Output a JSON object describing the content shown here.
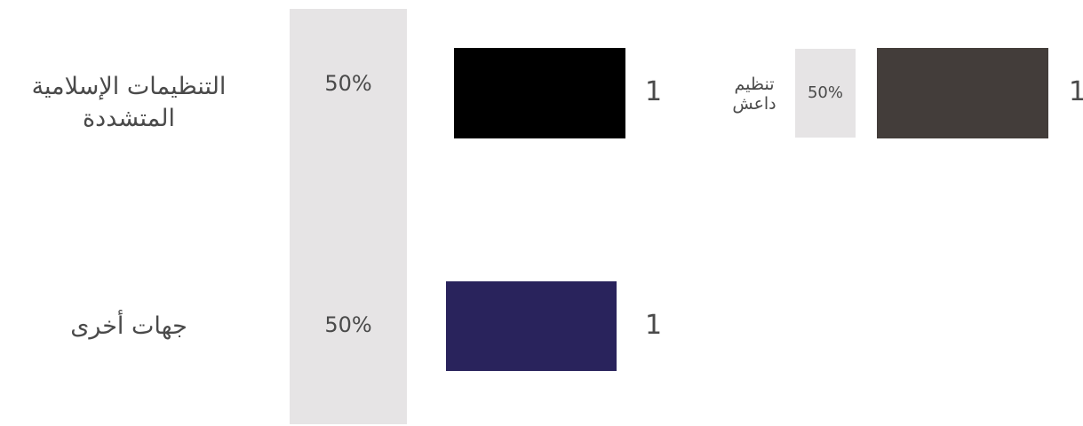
{
  "chart_data": {
    "type": "bar",
    "categories": [
      "التنظيمات الإسلامية المتشددة",
      "جهات أخرى"
    ],
    "values": [
      1,
      1
    ],
    "percent_labels": [
      "50%",
      "50%"
    ],
    "value_labels": [
      "1",
      "1"
    ],
    "bar_colors": [
      "#000000",
      "#29235c"
    ],
    "breakdown": {
      "category": "التنظيمات الإسلامية المتشددة",
      "label": "تنظيم داعش",
      "value": 1,
      "value_label": "1",
      "percent_label": "50%",
      "color": "#433d3a"
    },
    "percent_panel_color": "#e6e4e5",
    "grid": false
  }
}
